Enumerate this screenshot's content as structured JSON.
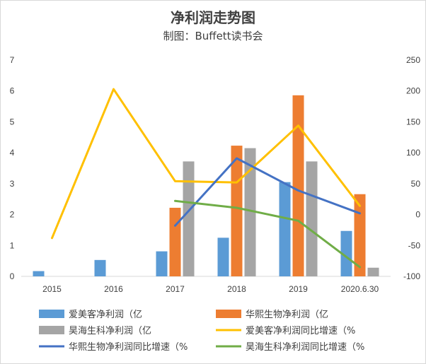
{
  "chart_data": {
    "type": "bar",
    "title": "净利润走势图",
    "subtitle": "制图：Buffett读书会",
    "categories": [
      "2015",
      "2016",
      "2017",
      "2018",
      "2019",
      "2020.6.30"
    ],
    "ylim_left": [
      0,
      7
    ],
    "yticks_left": [
      "0",
      "1",
      "2",
      "3",
      "4",
      "5",
      "6",
      "7"
    ],
    "ylim_right": [
      -100,
      250
    ],
    "yticks_right": [
      "-100",
      "-50",
      "0",
      "50",
      "100",
      "150",
      "200",
      "250"
    ],
    "grid": false,
    "legend_position": "bottom",
    "bar_series": [
      {
        "name": "爱美客净利润（亿",
        "color": "#5B9BD5",
        "values": [
          0.17,
          0.53,
          0.81,
          1.25,
          3.05,
          1.47
        ]
      },
      {
        "name": "华熙生物净利润（亿",
        "color": "#ED7D31",
        "values": [
          null,
          null,
          2.22,
          4.23,
          5.86,
          2.66
        ]
      },
      {
        "name": "昊海生科净利润（亿",
        "color": "#A5A5A5",
        "values": [
          null,
          null,
          3.72,
          4.15,
          3.72,
          0.28
        ]
      }
    ],
    "line_series": [
      {
        "name": "爱美客净利润同比增速（%",
        "color": "#FFC000",
        "values": [
          -38,
          203,
          54,
          52,
          144,
          14
        ]
      },
      {
        "name": "华熙生物净利润同比增速（%",
        "color": "#4472C4",
        "values": [
          null,
          null,
          -18,
          91,
          39,
          2
        ]
      },
      {
        "name": "昊海生科净利润同比增速（%",
        "color": "#70AD47",
        "values": [
          null,
          null,
          22,
          11,
          -10,
          -85
        ]
      }
    ]
  }
}
